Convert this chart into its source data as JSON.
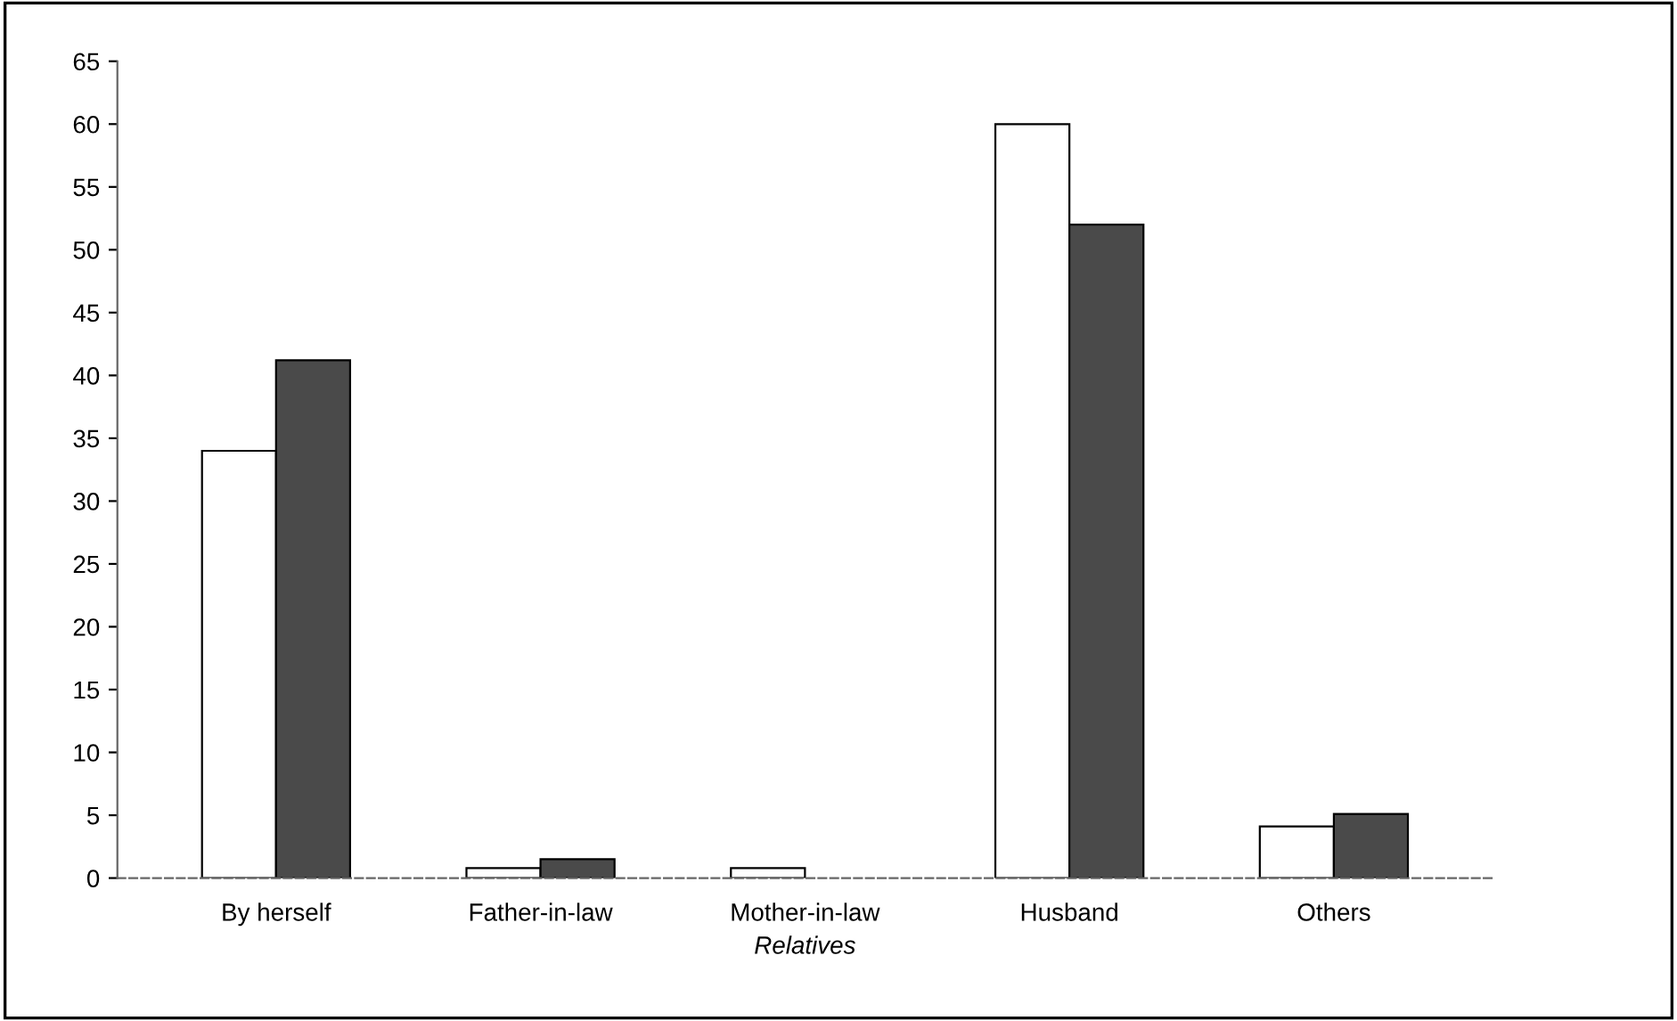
{
  "chart_data": {
    "type": "bar",
    "xlabel": "Relatives",
    "categories": [
      "By herself",
      "Father-in-law",
      "Mother-in-law",
      "Husband",
      "Others"
    ],
    "series": [
      {
        "color": "#ffffff",
        "values": [
          34,
          0.8,
          0.8,
          60,
          4.1
        ]
      },
      {
        "color": "#4a4a4a",
        "values": [
          41.2,
          1.5,
          0,
          52,
          5.1
        ]
      }
    ],
    "ylim": [
      0,
      65
    ],
    "yticks": [
      0,
      5,
      10,
      15,
      20,
      25,
      30,
      35,
      40,
      45,
      50,
      55,
      60,
      65
    ],
    "grid": false
  }
}
